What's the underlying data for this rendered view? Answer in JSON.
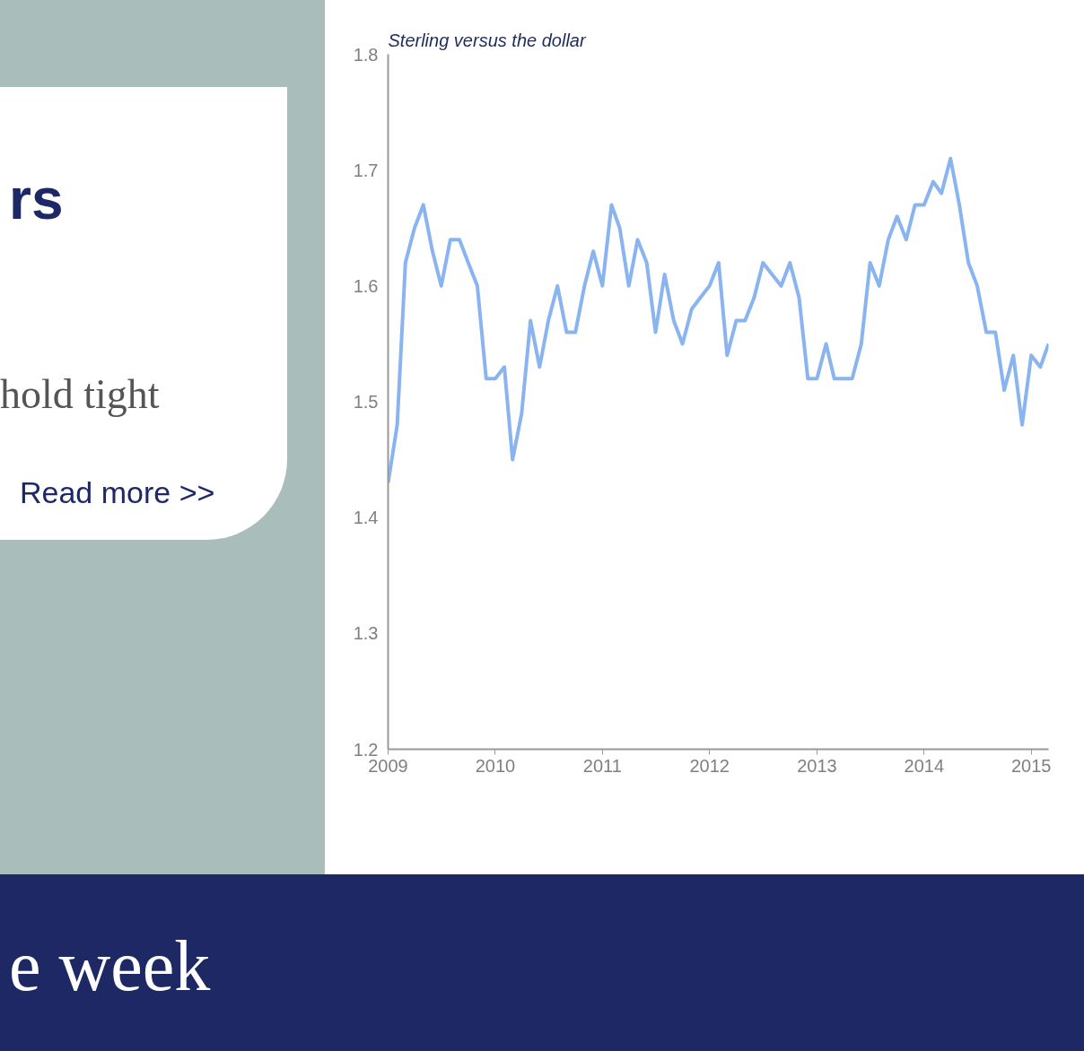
{
  "chart_data": {
    "type": "line",
    "title": "Sterling versus the dollar",
    "annotations": [
      "rs",
      "hold tight",
      "Read more >>",
      "e week"
    ],
    "x": [
      "2009-01",
      "2009-02",
      "2009-03",
      "2009-04",
      "2009-05",
      "2009-06",
      "2009-07",
      "2009-08",
      "2009-09",
      "2009-10",
      "2009-11",
      "2009-12",
      "2010-01",
      "2010-02",
      "2010-03",
      "2010-04",
      "2010-05",
      "2010-06",
      "2010-07",
      "2010-08",
      "2010-09",
      "2010-10",
      "2010-11",
      "2010-12",
      "2011-01",
      "2011-02",
      "2011-03",
      "2011-04",
      "2011-05",
      "2011-06",
      "2011-07",
      "2011-08",
      "2011-09",
      "2011-10",
      "2011-11",
      "2011-12",
      "2012-01",
      "2012-02",
      "2012-03",
      "2012-04",
      "2012-05",
      "2012-06",
      "2012-07",
      "2012-08",
      "2012-09",
      "2012-10",
      "2012-11",
      "2012-12",
      "2013-01",
      "2013-02",
      "2013-03",
      "2013-04",
      "2013-05",
      "2013-06",
      "2013-07",
      "2013-08",
      "2013-09",
      "2013-10",
      "2013-11",
      "2013-12",
      "2014-01",
      "2014-02",
      "2014-03",
      "2014-04",
      "2014-05",
      "2014-06",
      "2014-07",
      "2014-08",
      "2014-09",
      "2014-10",
      "2014-11",
      "2014-12",
      "2015-01",
      "2015-02",
      "2015-03"
    ],
    "series": [
      {
        "color": "#8ab4f0",
        "values": [
          1.43,
          1.48,
          1.62,
          1.65,
          1.67,
          1.63,
          1.6,
          1.64,
          1.64,
          1.62,
          1.6,
          1.52,
          1.52,
          1.53,
          1.45,
          1.49,
          1.57,
          1.53,
          1.57,
          1.6,
          1.56,
          1.56,
          1.6,
          1.63,
          1.6,
          1.67,
          1.65,
          1.6,
          1.64,
          1.62,
          1.56,
          1.61,
          1.57,
          1.55,
          1.58,
          1.59,
          1.6,
          1.62,
          1.54,
          1.57,
          1.57,
          1.59,
          1.62,
          1.61,
          1.6,
          1.62,
          1.59,
          1.52,
          1.52,
          1.55,
          1.52,
          1.52,
          1.52,
          1.55,
          1.62,
          1.6,
          1.64,
          1.66,
          1.64,
          1.67,
          1.67,
          1.69,
          1.68,
          1.71,
          1.67,
          1.62,
          1.6,
          1.56,
          1.56,
          1.51,
          1.54,
          1.48,
          1.54,
          1.53,
          1.55
        ]
      }
    ],
    "xlim": [
      "2009-01",
      "2015-03"
    ],
    "xticks": [
      {
        "value": "2009-01",
        "label": "2009"
      },
      {
        "value": "2010-01",
        "label": "2010"
      },
      {
        "value": "2011-01",
        "label": "2011"
      },
      {
        "value": "2012-01",
        "label": "2012"
      },
      {
        "value": "2013-01",
        "label": "2013"
      },
      {
        "value": "2014-01",
        "label": "2014"
      },
      {
        "value": "2015-01",
        "label": "2015"
      }
    ],
    "ylim": [
      1.2,
      1.8
    ],
    "yticks": [
      1.2,
      1.3,
      1.4,
      1.5,
      1.6,
      1.7,
      1.8
    ],
    "line_style": "solid"
  }
}
